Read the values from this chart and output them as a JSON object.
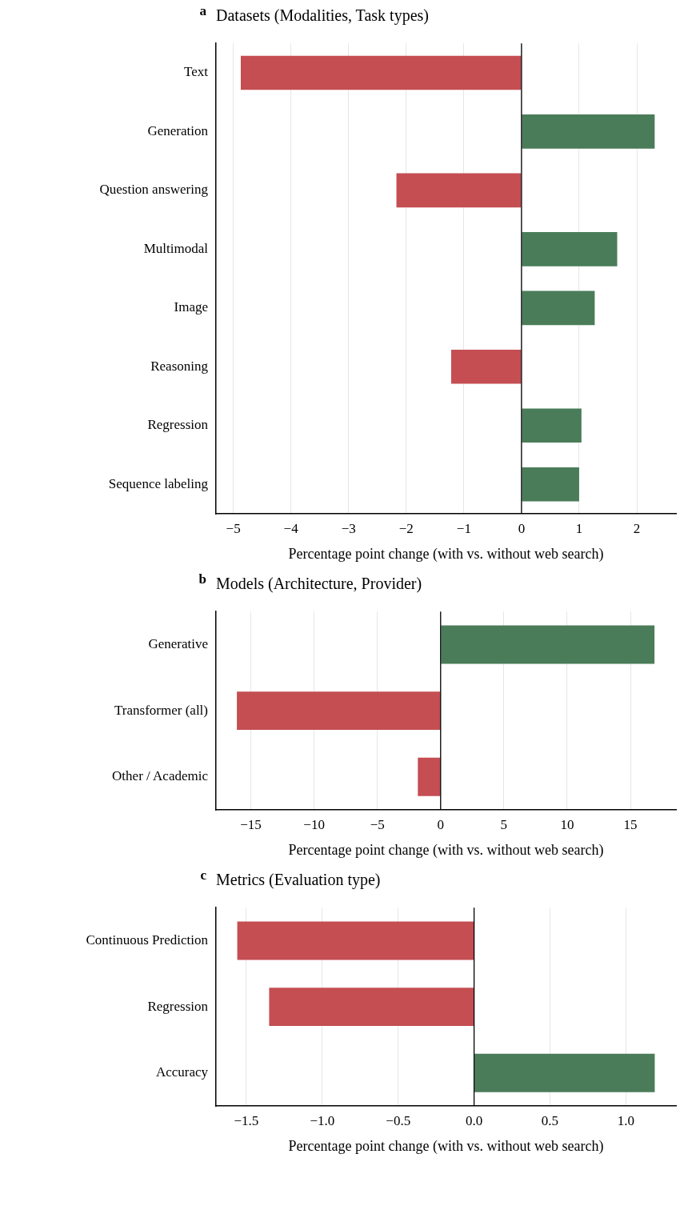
{
  "chart_data": [
    {
      "type": "bar",
      "orientation": "horizontal",
      "title": "Datasets (Modalities, Task types)",
      "annotations": [
        "a"
      ],
      "xlabel": "Percentage point change (with vs. without web search)",
      "categories": [
        "Text",
        "Generation",
        "Question answering",
        "Multimodal",
        "Image",
        "Reasoning",
        "Regression",
        "Sequence labeling"
      ],
      "values": [
        -4.87,
        2.31,
        -2.17,
        1.66,
        1.27,
        -1.22,
        1.04,
        1.0
      ],
      "colors": [
        "#c44e52",
        "#4a7c59",
        "#c44e52",
        "#4a7c59",
        "#4a7c59",
        "#c44e52",
        "#4a7c59",
        "#4a7c59"
      ],
      "xlim": [
        -5.3,
        2.68
      ],
      "xticks": [
        {
          "value": -5,
          "label": "−5"
        },
        {
          "value": -4,
          "label": "−4"
        },
        {
          "value": -3,
          "label": "−3"
        },
        {
          "value": -2,
          "label": "−2"
        },
        {
          "value": -1,
          "label": "−1"
        },
        0,
        1,
        2
      ],
      "grid": "x",
      "ref_lines": [
        {
          "axis": "x",
          "value": 0,
          "color": "#000000"
        }
      ]
    },
    {
      "type": "bar",
      "orientation": "horizontal",
      "title": "Models (Architecture, Provider)",
      "annotations": [
        "b"
      ],
      "xlabel": "Percentage point change (with vs. without web search)",
      "categories": [
        "Generative",
        "Transformer (all)",
        "Other / Academic"
      ],
      "values": [
        16.9,
        -16.1,
        -1.8
      ],
      "colors": [
        "#4a7c59",
        "#c44e52",
        "#c44e52"
      ],
      "xlim": [
        -17.75,
        18.6
      ],
      "xticks": [
        {
          "value": -15,
          "label": "−15"
        },
        {
          "value": -10,
          "label": "−10"
        },
        {
          "value": -5,
          "label": "−5"
        },
        0,
        5,
        10,
        15
      ],
      "grid": "x",
      "ref_lines": [
        {
          "axis": "x",
          "value": 0,
          "color": "#000000"
        }
      ]
    },
    {
      "type": "bar",
      "orientation": "horizontal",
      "title": "Metrics (Evaluation type)",
      "annotations": [
        "c"
      ],
      "xlabel": "Percentage point change (with vs. without web search)",
      "categories": [
        "Continuous Prediction",
        "Regression",
        "Accuracy"
      ],
      "values": [
        -1.56,
        -1.35,
        1.19
      ],
      "colors": [
        "#c44e52",
        "#c44e52",
        "#4a7c59"
      ],
      "xlim": [
        -1.7,
        1.33
      ],
      "xticks": [
        {
          "value": -1.5,
          "label": "−1.5"
        },
        {
          "value": -1.0,
          "label": "−1.0"
        },
        {
          "value": -0.5,
          "label": "−0.5"
        },
        {
          "value": 0,
          "label": "0.0"
        },
        {
          "value": 0.5,
          "label": "0.5"
        },
        {
          "value": 1.0,
          "label": "1.0"
        }
      ],
      "grid": "x",
      "ref_lines": [
        {
          "axis": "x",
          "value": 0,
          "color": "#000000"
        }
      ]
    }
  ]
}
